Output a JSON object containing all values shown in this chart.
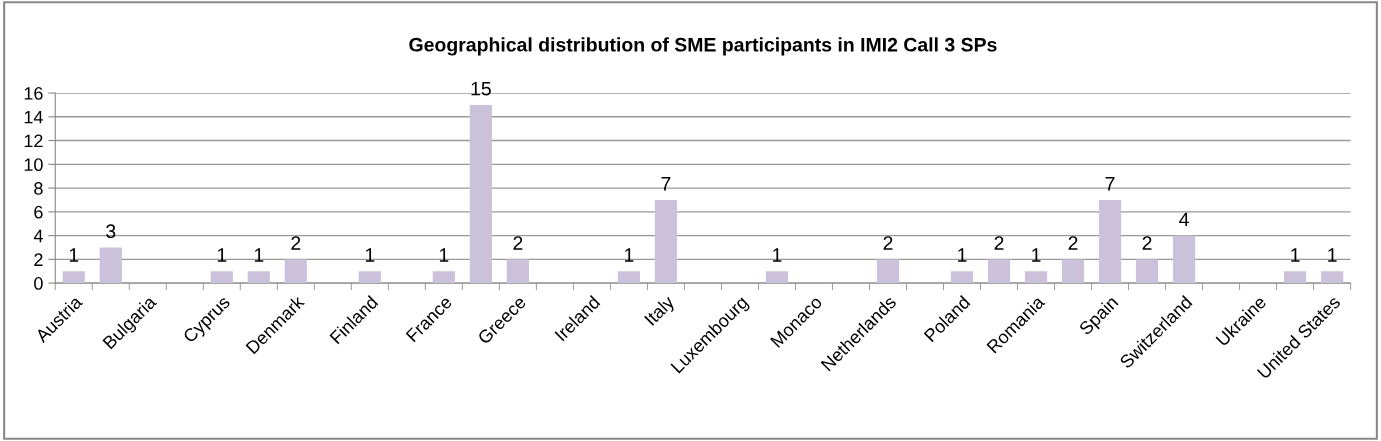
{
  "chart_data": {
    "type": "bar",
    "title": "Geographical distribution of SME participants in IMI2 Call 3 SPs",
    "categories": [
      "Austria",
      null,
      "Bulgaria",
      null,
      "Cyprus",
      null,
      "Denmark",
      null,
      "Finland",
      null,
      "France",
      null,
      "Greece",
      null,
      "Ireland",
      null,
      "Italy",
      null,
      "Luxembourg",
      null,
      "Monaco",
      null,
      "Netherlands",
      null,
      "Poland",
      null,
      "Romania",
      null,
      "Spain",
      null,
      "Switzerland",
      null,
      "Ukraine",
      null,
      "United States"
    ],
    "values": [
      1,
      3,
      null,
      null,
      1,
      1,
      2,
      null,
      1,
      null,
      1,
      15,
      2,
      null,
      null,
      1,
      7,
      null,
      null,
      1,
      null,
      null,
      2,
      null,
      1,
      2,
      1,
      2,
      7,
      2,
      4,
      null,
      null,
      1,
      1
    ],
    "color": "#ccc1da",
    "ylim": [
      0,
      16
    ],
    "yticks": [
      0,
      2,
      4,
      6,
      8,
      10,
      12,
      14,
      16
    ],
    "grid": "y",
    "data_labels": true
  }
}
